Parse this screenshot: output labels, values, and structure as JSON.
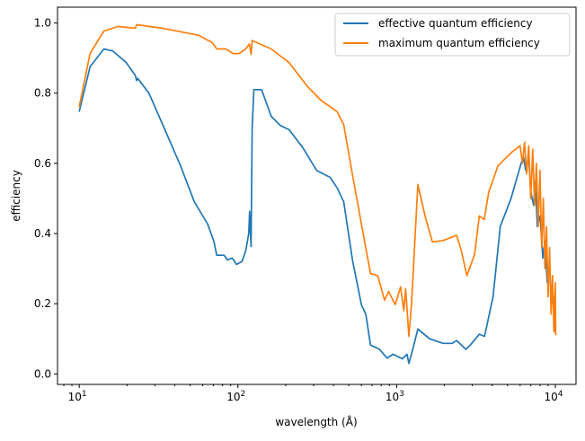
{
  "chart_data": {
    "type": "line",
    "title": "",
    "xlabel": "wavelength (Å)",
    "ylabel": "efficiency",
    "xscale": "log",
    "xlim": [
      7.3,
      13500
    ],
    "ylim": [
      -0.03,
      1.045
    ],
    "xticks": [
      {
        "base": "10",
        "exp": "1",
        "value": 10
      },
      {
        "base": "10",
        "exp": "2",
        "value": 100
      },
      {
        "base": "10",
        "exp": "3",
        "value": 1000
      },
      {
        "base": "10",
        "exp": "4",
        "value": 10000
      }
    ],
    "yticks": [
      "0.0",
      "0.2",
      "0.4",
      "0.6",
      "0.8",
      "1.0"
    ],
    "legend_position": "top-right",
    "series": [
      {
        "name": "effective quantum efficiency",
        "color": "#1f77b4",
        "points": [
          [
            10,
            0.747
          ],
          [
            11.7,
            0.875
          ],
          [
            14.3,
            0.926
          ],
          [
            16.3,
            0.92
          ],
          [
            19.8,
            0.887
          ],
          [
            22.6,
            0.85
          ],
          [
            23,
            0.836
          ],
          [
            23.4,
            0.842
          ],
          [
            27.5,
            0.8
          ],
          [
            35.7,
            0.683
          ],
          [
            43.5,
            0.593
          ],
          [
            53,
            0.491
          ],
          [
            64.5,
            0.427
          ],
          [
            70.7,
            0.376
          ],
          [
            73.6,
            0.338
          ],
          [
            81.7,
            0.338
          ],
          [
            86,
            0.325
          ],
          [
            92,
            0.33
          ],
          [
            98,
            0.312
          ],
          [
            106,
            0.32
          ],
          [
            112,
            0.35
          ],
          [
            117,
            0.4
          ],
          [
            118.6,
            0.463
          ],
          [
            120,
            0.4
          ],
          [
            121,
            0.363
          ],
          [
            123,
            0.7
          ],
          [
            126,
            0.81
          ],
          [
            141,
            0.81
          ],
          [
            162,
            0.734
          ],
          [
            185,
            0.708
          ],
          [
            210,
            0.696
          ],
          [
            256,
            0.645
          ],
          [
            313,
            0.58
          ],
          [
            381,
            0.56
          ],
          [
            422,
            0.53
          ],
          [
            464,
            0.49
          ],
          [
            527,
            0.325
          ],
          [
            600,
            0.197
          ],
          [
            640,
            0.17
          ],
          [
            685,
            0.082
          ],
          [
            780,
            0.07
          ],
          [
            870,
            0.045
          ],
          [
            950,
            0.056
          ],
          [
            1087,
            0.043
          ],
          [
            1162,
            0.056
          ],
          [
            1195,
            0.03
          ],
          [
            1240,
            0.056
          ],
          [
            1360,
            0.128
          ],
          [
            1614,
            0.1
          ],
          [
            1963,
            0.087
          ],
          [
            2240,
            0.087
          ],
          [
            2390,
            0.095
          ],
          [
            2730,
            0.07
          ],
          [
            2913,
            0.082
          ],
          [
            3320,
            0.113
          ],
          [
            3580,
            0.107
          ],
          [
            4050,
            0.22
          ],
          [
            4500,
            0.42
          ],
          [
            5260,
            0.5
          ],
          [
            6000,
            0.59
          ],
          [
            6300,
            0.62
          ],
          [
            6500,
            0.58
          ],
          [
            6800,
            0.62
          ],
          [
            7000,
            0.52
          ],
          [
            7300,
            0.48
          ],
          [
            7500,
            0.55
          ],
          [
            7700,
            0.42
          ],
          [
            8000,
            0.45
          ],
          [
            8350,
            0.33
          ],
          [
            8600,
            0.38
          ],
          [
            8900,
            0.26
          ],
          [
            9200,
            0.3
          ],
          [
            9500,
            0.2
          ],
          [
            9800,
            0.22
          ],
          [
            10000,
            0.12
          ]
        ]
      },
      {
        "name": "maximum quantum efficiency",
        "color": "#ff7f0e",
        "points": [
          [
            10,
            0.76
          ],
          [
            11.7,
            0.913
          ],
          [
            14.3,
            0.977
          ],
          [
            17.5,
            0.99
          ],
          [
            22.6,
            0.985
          ],
          [
            23,
            0.995
          ],
          [
            33.5,
            0.985
          ],
          [
            56.6,
            0.965
          ],
          [
            68.9,
            0.944
          ],
          [
            73.6,
            0.926
          ],
          [
            84,
            0.926
          ],
          [
            93,
            0.913
          ],
          [
            102,
            0.913
          ],
          [
            112,
            0.926
          ],
          [
            118,
            0.94
          ],
          [
            121,
            0.91
          ],
          [
            123,
            0.95
          ],
          [
            162,
            0.926
          ],
          [
            210,
            0.887
          ],
          [
            273,
            0.82
          ],
          [
            333,
            0.78
          ],
          [
            422,
            0.747
          ],
          [
            464,
            0.71
          ],
          [
            527,
            0.568
          ],
          [
            600,
            0.427
          ],
          [
            685,
            0.286
          ],
          [
            760,
            0.28
          ],
          [
            840,
            0.21
          ],
          [
            890,
            0.235
          ],
          [
            980,
            0.197
          ],
          [
            1060,
            0.248
          ],
          [
            1110,
            0.18
          ],
          [
            1140,
            0.243
          ],
          [
            1195,
            0.107
          ],
          [
            1240,
            0.197
          ],
          [
            1360,
            0.54
          ],
          [
            1510,
            0.45
          ],
          [
            1680,
            0.376
          ],
          [
            1963,
            0.38
          ],
          [
            2240,
            0.39
          ],
          [
            2390,
            0.395
          ],
          [
            2560,
            0.35
          ],
          [
            2770,
            0.28
          ],
          [
            3100,
            0.34
          ],
          [
            3320,
            0.45
          ],
          [
            3560,
            0.44
          ],
          [
            3800,
            0.517
          ],
          [
            4350,
            0.593
          ],
          [
            5260,
            0.63
          ],
          [
            6000,
            0.65
          ],
          [
            6200,
            0.6
          ],
          [
            6400,
            0.66
          ],
          [
            6600,
            0.57
          ],
          [
            6800,
            0.65
          ],
          [
            7000,
            0.5
          ],
          [
            7200,
            0.64
          ],
          [
            7400,
            0.48
          ],
          [
            7600,
            0.6
          ],
          [
            7800,
            0.42
          ],
          [
            8000,
            0.58
          ],
          [
            8200,
            0.36
          ],
          [
            8400,
            0.5
          ],
          [
            8600,
            0.3
          ],
          [
            8800,
            0.42
          ],
          [
            9000,
            0.22
          ],
          [
            9200,
            0.36
          ],
          [
            9400,
            0.17
          ],
          [
            9600,
            0.28
          ],
          [
            9800,
            0.12
          ],
          [
            10000,
            0.26
          ],
          [
            10050,
            0.11
          ]
        ]
      }
    ]
  }
}
